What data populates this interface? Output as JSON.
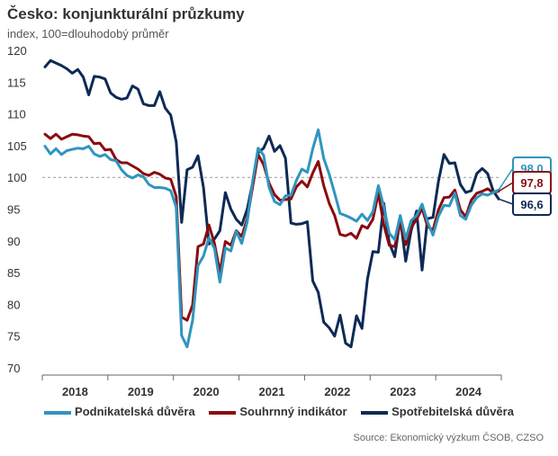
{
  "header": {
    "title": "Česko: konjunkturální průzkumy",
    "subtitle": "index, 100=dlouhodobý průměr"
  },
  "source": "Source: Ekonomický výzkum ČSOB, CZSO",
  "chart_data": {
    "type": "line",
    "title": "Česko: konjunkturální průzkumy",
    "ylabel": "index, 100=dlouhodobý průměr",
    "ylim": [
      70,
      120
    ],
    "yticks": [
      70,
      75,
      80,
      85,
      90,
      95,
      100,
      105,
      110,
      115,
      120
    ],
    "reference_line": 100,
    "x_start": "2018-01",
    "x_end": "2024-10",
    "year_labels": [
      "2018",
      "2019",
      "2020",
      "2021",
      "2022",
      "2023",
      "2024"
    ],
    "legend_position": "bottom",
    "series": [
      {
        "name": "Podnikatelská důvěra",
        "color": "#2f95bf",
        "end_label": "98,0",
        "values": [
          104.9,
          103.7,
          104.5,
          103.6,
          104.2,
          104.4,
          104.6,
          104.5,
          104.9,
          103.7,
          103.3,
          103.6,
          102.8,
          102.6,
          101.2,
          100.3,
          99.9,
          100.4,
          100.1,
          98.9,
          98.4,
          98.4,
          98.3,
          97.9,
          95.3,
          75.1,
          73.3,
          77.5,
          86.1,
          87.6,
          90.5,
          88.8,
          83.5,
          88.9,
          88.4,
          91.5,
          89.6,
          93.0,
          99.5,
          104.6,
          103.5,
          98.4,
          96.2,
          95.7,
          97.1,
          97.2,
          99.5,
          101.3,
          100.8,
          104.5,
          107.5,
          103.0,
          100.5,
          97.5,
          94.3,
          94.0,
          93.6,
          93.1,
          94.2,
          93.2,
          94.6,
          98.7,
          95.4,
          91.2,
          90.2,
          94.0,
          90.3,
          93.2,
          94.0,
          95.8,
          93.0,
          90.9,
          93.9,
          95.6,
          95.5,
          97.5,
          94.0,
          93.4,
          95.6,
          96.8,
          97.4,
          97.2,
          97.6,
          98.0
        ]
      },
      {
        "name": "Souhrnný indikátor",
        "color": "#8b0b0f",
        "end_label": "97,8",
        "values": [
          106.8,
          106.1,
          106.8,
          106.0,
          106.4,
          106.8,
          106.7,
          106.5,
          106.4,
          105.3,
          105.4,
          104.3,
          104.4,
          102.8,
          102.3,
          102.3,
          101.8,
          101.3,
          100.6,
          100.3,
          100.8,
          100.5,
          99.9,
          99.7,
          97.0,
          78.0,
          77.5,
          79.9,
          89.1,
          89.5,
          92.5,
          89.6,
          85.1,
          89.9,
          89.3,
          91.6,
          90.7,
          93.5,
          98.6,
          103.6,
          102.0,
          99.1,
          97.3,
          96.4,
          96.5,
          96.6,
          98.5,
          99.4,
          98.5,
          100.7,
          102.5,
          98.7,
          95.9,
          94.0,
          91.0,
          90.8,
          91.2,
          90.4,
          92.4,
          92.0,
          93.4,
          97.5,
          92.5,
          89.3,
          89.1,
          92.9,
          89.4,
          92.1,
          93.4,
          95.1,
          92.3,
          91.7,
          94.9,
          96.8,
          96.9,
          98.0,
          94.9,
          93.8,
          96.4,
          97.5,
          97.8,
          98.2,
          97.6,
          97.8
        ]
      },
      {
        "name": "Spotřebitelská důvěra",
        "color": "#0d2a55",
        "end_label": "96,6",
        "values": [
          117.4,
          118.4,
          118.0,
          117.6,
          117.1,
          116.4,
          117.0,
          115.8,
          113.0,
          115.9,
          115.8,
          115.5,
          113.3,
          112.6,
          112.3,
          112.5,
          114.4,
          113.9,
          111.6,
          111.3,
          111.3,
          113.5,
          110.9,
          109.8,
          105.6,
          92.9,
          101.2,
          101.6,
          103.4,
          98.4,
          89.5,
          90.3,
          91.6,
          97.6,
          95.0,
          93.4,
          92.5,
          95.0,
          99.2,
          103.9,
          104.6,
          106.5,
          104.1,
          105.0,
          103.0,
          92.8,
          92.6,
          92.7,
          93.0,
          83.7,
          81.9,
          77.2,
          76.3,
          75.0,
          78.3,
          73.9,
          73.3,
          78.2,
          76.2,
          84.0,
          88.3,
          88.2,
          95.9,
          89.7,
          87.5,
          93.6,
          86.8,
          91.6,
          94.7,
          85.4,
          93.5,
          93.7,
          99.4,
          103.6,
          102.2,
          102.3,
          98.9,
          97.6,
          97.9,
          100.6,
          101.4,
          100.6,
          97.9,
          96.6
        ]
      }
    ]
  }
}
